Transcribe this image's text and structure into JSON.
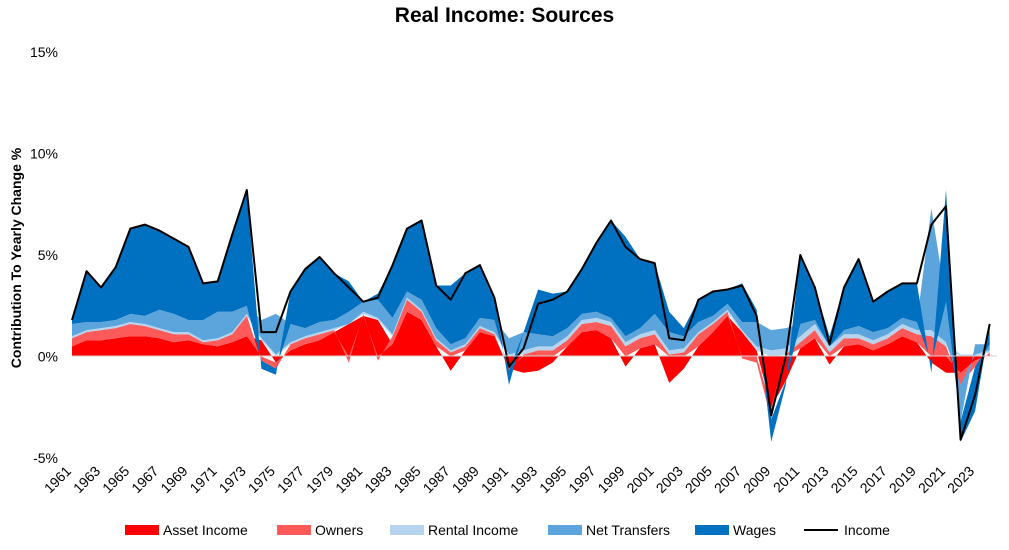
{
  "chart_data": {
    "type": "area",
    "title": "Real Income: Sources",
    "xlabel": "",
    "ylabel": "Contribution To Yearly Change %",
    "x_range": [
      1961,
      2024.5
    ],
    "ylim": [
      -5,
      15
    ],
    "y_ticks": [
      "-5%",
      "0%",
      "5%",
      "10%",
      "15%"
    ],
    "y_tick_values": [
      -5,
      0,
      5,
      10,
      15
    ],
    "x_ticks": [
      "1961",
      "1963",
      "1965",
      "1967",
      "1969",
      "1971",
      "1973",
      "1975",
      "1977",
      "1979",
      "1981",
      "1983",
      "1985",
      "1987",
      "1989",
      "1991",
      "1993",
      "1995",
      "1997",
      "1999",
      "2001",
      "2003",
      "2005",
      "2007",
      "2009",
      "2011",
      "2013",
      "2015",
      "2017",
      "2019",
      "2021",
      "2023"
    ],
    "grid": false,
    "legend_position": "bottom",
    "stacked": true,
    "x": [
      1961,
      1962,
      1963,
      1964,
      1965,
      1966,
      1967,
      1968,
      1969,
      1970,
      1971,
      1972,
      1973,
      1974,
      1975,
      1976,
      1977,
      1978,
      1979,
      1980,
      1981,
      1982,
      1983,
      1984,
      1985,
      1986,
      1987,
      1988,
      1989,
      1990,
      1991,
      1992,
      1993,
      1994,
      1995,
      1996,
      1997,
      1998,
      1999,
      2000,
      2001,
      2002,
      2003,
      2004,
      2005,
      2006,
      2007,
      2008,
      2009,
      2010,
      2011,
      2012,
      2013,
      2014,
      2015,
      2016,
      2017,
      2018,
      2019,
      2020,
      2021,
      2022,
      2023,
      2024
    ],
    "series": [
      {
        "name": "Asset Income",
        "color": "#ff0000",
        "values": [
          0.5,
          0.8,
          0.8,
          0.9,
          1.0,
          1.0,
          0.9,
          0.7,
          0.8,
          0.6,
          0.5,
          0.7,
          1.0,
          0.8,
          -0.3,
          0.3,
          0.6,
          0.8,
          1.2,
          1.6,
          2.0,
          1.8,
          0.6,
          2.2,
          1.8,
          0.5,
          -0.7,
          0.3,
          1.2,
          1.0,
          -0.6,
          -0.8,
          -0.7,
          -0.3,
          0.5,
          1.2,
          1.3,
          0.9,
          -0.5,
          0.4,
          0.6,
          -1.3,
          -0.6,
          0.5,
          1.2,
          2.0,
          1.2,
          0.3,
          -2.5,
          -1.2,
          0.4,
          0.9,
          -0.4,
          0.5,
          0.6,
          0.3,
          0.6,
          1.0,
          0.7,
          -0.3,
          -0.8,
          -0.8,
          -0.2,
          0.1
        ]
      },
      {
        "name": "Owners",
        "color": "#ff5a5a",
        "values": [
          0.4,
          0.4,
          0.5,
          0.5,
          0.6,
          0.5,
          0.4,
          0.4,
          0.3,
          0.1,
          0.3,
          0.4,
          1.0,
          -0.2,
          -0.3,
          0.3,
          0.3,
          0.3,
          0.1,
          -0.3,
          0.1,
          -0.2,
          0.4,
          0.6,
          0.4,
          0.3,
          0.2,
          0.2,
          0.2,
          0.1,
          -0.1,
          0.1,
          0.3,
          0.3,
          0.3,
          0.4,
          0.4,
          0.6,
          0.5,
          0.5,
          0.5,
          0.1,
          0.2,
          0.6,
          0.4,
          0.2,
          -0.1,
          -0.3,
          -0.6,
          0.1,
          0.3,
          0.4,
          0.2,
          0.4,
          0.3,
          0.3,
          0.3,
          0.4,
          0.4,
          1.0,
          0.5,
          -0.6,
          -0.3,
          0.1
        ]
      },
      {
        "name": "Rental Income",
        "color": "#b7d4ee",
        "values": [
          0.1,
          0.1,
          0.1,
          0.1,
          0.1,
          0.1,
          0.1,
          0.1,
          0.1,
          0.1,
          0.1,
          0.1,
          0.1,
          0.1,
          0.1,
          0.1,
          0.1,
          0.1,
          0.1,
          0.0,
          0.1,
          0.1,
          0.1,
          0.1,
          0.1,
          0.1,
          0.1,
          0.1,
          0.1,
          0.1,
          0.1,
          0.2,
          0.2,
          0.2,
          0.2,
          0.2,
          0.2,
          0.2,
          0.2,
          0.2,
          0.2,
          0.2,
          0.2,
          0.1,
          0.1,
          0.1,
          0.1,
          0.2,
          0.3,
          0.3,
          0.3,
          0.3,
          0.3,
          0.2,
          0.2,
          0.2,
          0.2,
          0.2,
          0.2,
          0.3,
          0.2,
          0.1,
          0.1,
          0.1
        ]
      },
      {
        "name": "Net Transfers",
        "color": "#5ca4dc",
        "values": [
          0.6,
          0.4,
          0.3,
          0.3,
          0.4,
          0.4,
          0.9,
          0.9,
          0.6,
          1.0,
          1.3,
          1.0,
          0.4,
          0.9,
          2.0,
          0.9,
          0.4,
          0.5,
          0.4,
          0.6,
          0.5,
          0.9,
          0.8,
          0.3,
          0.5,
          0.5,
          0.3,
          0.3,
          0.4,
          0.6,
          0.8,
          0.9,
          0.6,
          0.5,
          0.4,
          0.3,
          0.3,
          0.2,
          0.3,
          0.3,
          0.8,
          0.9,
          0.6,
          0.5,
          0.3,
          0.3,
          0.4,
          1.2,
          1.0,
          1.0,
          0.6,
          0.2,
          0.0,
          0.2,
          0.4,
          0.4,
          0.3,
          0.3,
          0.4,
          6.0,
          2.0,
          -1.8,
          0.5,
          0.3
        ]
      },
      {
        "name": "Wages",
        "color": "#0070c0",
        "values": [
          0.2,
          2.5,
          1.7,
          2.6,
          4.2,
          4.5,
          3.9,
          3.7,
          3.6,
          1.8,
          1.5,
          3.8,
          5.7,
          -0.4,
          -0.3,
          1.6,
          2.9,
          3.2,
          2.3,
          1.5,
          0.0,
          0.3,
          2.6,
          3.1,
          3.9,
          2.1,
          2.9,
          3.2,
          2.6,
          1.1,
          -0.7,
          0.0,
          2.2,
          2.1,
          1.8,
          2.2,
          3.4,
          4.8,
          4.9,
          3.4,
          2.5,
          1.0,
          0.4,
          1.1,
          1.2,
          0.7,
          1.9,
          0.6,
          -1.1,
          -0.2,
          3.4,
          1.6,
          0.5,
          2.1,
          3.3,
          1.5,
          1.8,
          1.7,
          1.9,
          -0.5,
          5.5,
          -1.0,
          -2.2,
          1.0
        ]
      },
      {
        "name": "Income",
        "color": "#000000",
        "type": "line",
        "values": [
          1.8,
          4.2,
          3.4,
          4.4,
          6.3,
          6.5,
          6.2,
          5.8,
          5.4,
          3.6,
          3.7,
          6.0,
          8.2,
          1.2,
          1.2,
          3.2,
          4.3,
          4.9,
          4.1,
          3.4,
          2.7,
          2.9,
          4.5,
          6.3,
          6.7,
          3.5,
          2.8,
          4.1,
          4.5,
          2.9,
          -0.5,
          0.4,
          2.6,
          2.8,
          3.2,
          4.3,
          5.6,
          6.7,
          5.4,
          4.8,
          4.6,
          0.9,
          0.8,
          2.8,
          3.2,
          3.3,
          3.5,
          2.0,
          -2.9,
          0.0,
          5.0,
          3.4,
          0.6,
          3.4,
          4.8,
          2.7,
          3.2,
          3.6,
          3.6,
          6.5,
          7.4,
          -4.1,
          -1.9,
          1.6
        ]
      }
    ]
  }
}
